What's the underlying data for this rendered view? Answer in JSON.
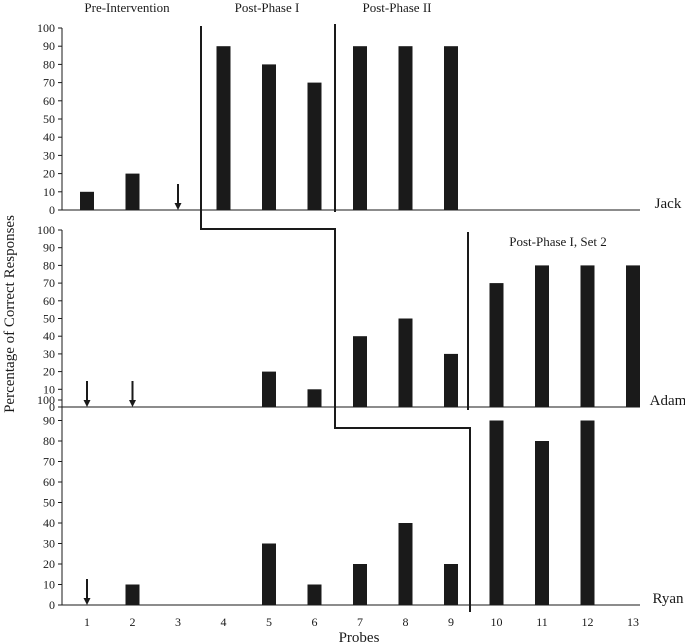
{
  "chart_data": {
    "type": "bar",
    "layout": "stacked-panels",
    "ylabel": "Percentage of Correct Responses",
    "xlabel": "Probes",
    "categories": [
      "1",
      "2",
      "3",
      "4",
      "5",
      "6",
      "7",
      "8",
      "9",
      "10",
      "11",
      "12",
      "13"
    ],
    "ylim": [
      0,
      100
    ],
    "yticks": [
      0,
      10,
      20,
      30,
      40,
      50,
      60,
      70,
      80,
      90,
      100
    ],
    "bar_color": "#1a1a1a",
    "phase_labels": {
      "pre": "Pre-Intervention",
      "post1": "Post-Phase I",
      "post2": "Post-Phase II",
      "post1set2": "Post-Phase I, Set 2"
    },
    "panels": [
      {
        "name": "Jack",
        "values": [
          10,
          20,
          null,
          90,
          80,
          70,
          90,
          90,
          90,
          null,
          null,
          null,
          null
        ],
        "zero_markers": [
          3
        ]
      },
      {
        "name": "Adam",
        "values": [
          null,
          null,
          null,
          null,
          20,
          10,
          40,
          50,
          30,
          70,
          80,
          80,
          80
        ],
        "zero_markers": [
          1,
          2
        ]
      },
      {
        "name": "Ryan",
        "values": [
          null,
          10,
          null,
          null,
          30,
          10,
          20,
          40,
          20,
          90,
          80,
          90,
          null
        ],
        "zero_markers": [
          1
        ]
      }
    ]
  }
}
